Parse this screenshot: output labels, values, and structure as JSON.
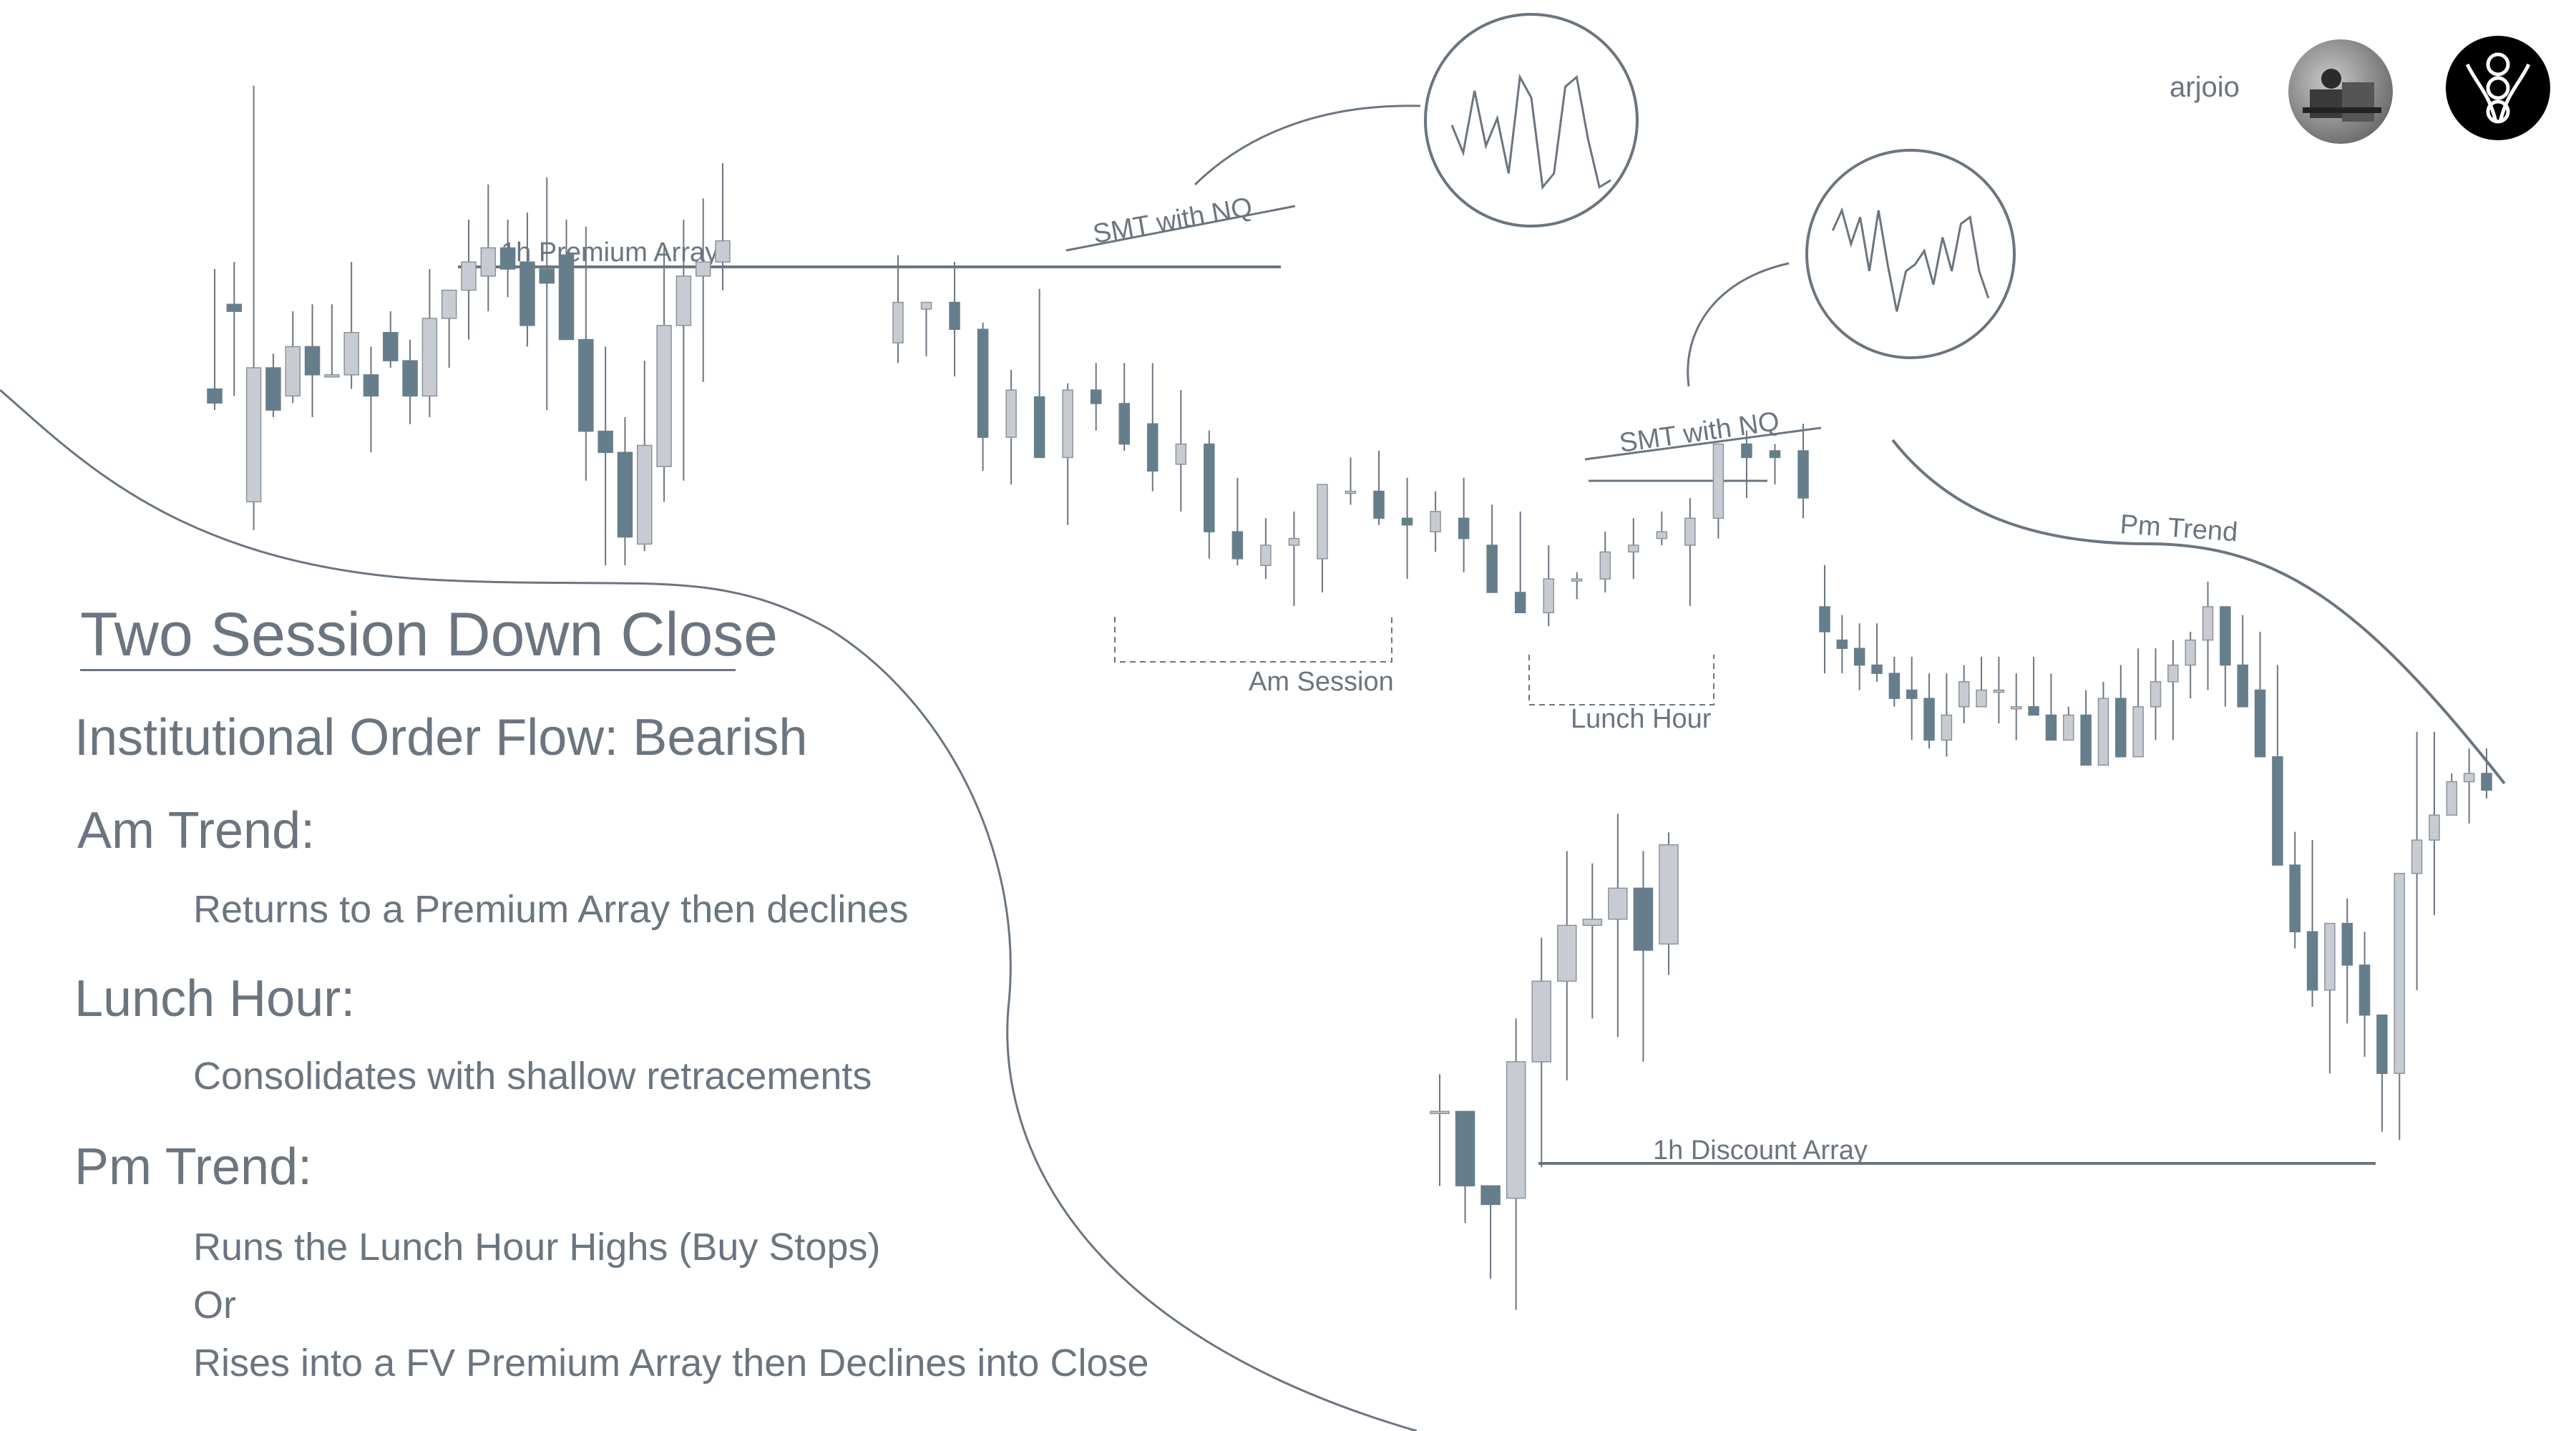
{
  "slide": {
    "title": "Two Session Down Close",
    "subtitle": "Institutional Order Flow: Bearish",
    "sections": [
      {
        "heading": "Am Trend:",
        "lines": [
          "Returns to a Premium Array then declines"
        ]
      },
      {
        "heading": "Lunch Hour:",
        "lines": [
          "Consolidates with shallow retracements"
        ]
      },
      {
        "heading": "Pm Trend:",
        "lines": [
          "Runs the Lunch Hour Highs (Buy Stops)",
          "Or",
          "Rises into a FV Premium Array then Declines into Close"
        ]
      }
    ],
    "author": "arjoio"
  },
  "chart_data": {
    "type": "candlestick",
    "colors": {
      "bullish": "#c8ccd2",
      "bearish": "#667e8c",
      "line": "#6b7580",
      "text": "#6b7580"
    },
    "annotations": [
      "1h Premium Array",
      "SMT with NQ",
      "Am Session",
      "Lunch Hour",
      "SMT with NQ",
      "Pm Trend",
      "1h Discount Array"
    ],
    "main_series": [
      [
        100,
        117,
        97,
        98
      ],
      [
        112,
        118,
        99,
        111
      ],
      [
        84,
        143,
        80,
        103
      ],
      [
        103,
        105,
        96,
        97
      ],
      [
        99,
        111,
        98,
        106
      ],
      [
        106,
        112,
        96,
        102
      ],
      [
        102,
        112,
        102,
        102
      ],
      [
        102,
        118,
        100,
        108
      ],
      [
        102,
        106,
        91,
        99
      ],
      [
        108,
        111,
        103,
        104
      ],
      [
        104,
        107,
        95,
        99
      ],
      [
        99,
        117,
        96,
        110
      ],
      [
        110,
        114,
        103,
        114
      ],
      [
        114,
        124,
        107,
        118
      ],
      [
        116,
        129,
        111,
        120
      ],
      [
        120,
        124,
        113,
        117
      ],
      [
        118,
        125,
        106,
        109
      ],
      [
        117,
        130,
        97,
        115
      ],
      [
        119,
        124,
        109,
        107
      ],
      [
        107,
        123,
        87,
        94
      ],
      [
        94,
        106,
        75,
        91
      ],
      [
        91,
        96,
        75,
        79
      ],
      [
        78,
        104,
        77,
        92
      ],
      [
        89,
        120,
        84,
        109
      ],
      [
        109,
        124,
        87,
        116
      ],
      [
        116,
        127,
        101,
        118
      ],
      [
        118,
        132,
        114,
        121
      ],
      [
        121,
        134,
        118,
        127
      ],
      [
        126,
        127,
        119,
        127
      ],
      [
        127,
        133,
        116,
        123
      ],
      [
        123,
        124,
        102,
        107
      ],
      [
        107,
        117,
        100,
        114
      ],
      [
        113,
        129,
        109,
        104
      ],
      [
        104,
        115,
        94,
        114
      ],
      [
        114,
        118,
        108,
        112
      ],
      [
        112,
        118,
        105,
        106
      ],
      [
        109,
        118,
        99,
        102
      ],
      [
        103,
        114,
        96,
        106
      ],
      [
        106,
        108,
        89,
        93
      ],
      [
        93,
        101,
        88,
        89
      ],
      [
        88,
        95,
        86,
        91
      ],
      [
        91,
        96,
        82,
        92
      ],
      [
        89,
        100,
        84,
        100
      ],
      [
        99,
        104,
        97,
        99
      ],
      [
        99,
        105,
        94,
        95
      ],
      [
        95,
        101,
        86,
        94
      ],
      [
        93,
        99,
        90,
        96
      ],
      [
        95,
        101,
        87,
        92
      ],
      [
        91,
        97,
        87,
        84
      ],
      [
        84,
        96,
        83,
        81
      ],
      [
        81,
        91,
        79,
        86
      ],
      [
        86,
        87,
        83,
        86
      ],
      [
        86,
        93,
        84,
        90
      ],
      [
        90,
        95,
        86,
        91
      ],
      [
        92,
        96,
        91,
        93
      ],
      [
        91,
        98,
        82,
        95
      ],
      [
        95,
        104,
        92,
        106
      ],
      [
        106,
        108,
        98,
        104
      ],
      [
        105,
        106,
        100,
        104
      ],
      [
        105,
        109,
        95,
        98
      ],
      [
        98,
        103,
        90,
        95
      ],
      [
        94,
        97,
        90,
        93
      ],
      [
        93,
        96,
        88,
        91
      ],
      [
        91,
        96,
        89,
        90
      ],
      [
        90,
        92,
        86,
        87
      ],
      [
        88,
        92,
        82,
        87
      ],
      [
        87,
        90,
        81,
        82
      ],
      [
        82,
        90,
        80,
        85
      ],
      [
        86,
        91,
        84,
        89
      ],
      [
        86,
        92,
        86,
        88
      ],
      [
        88,
        92,
        84,
        88
      ],
      [
        86,
        90,
        82,
        86
      ],
      [
        86,
        92,
        85,
        85
      ],
      [
        85,
        90,
        84,
        82
      ],
      [
        82,
        86,
        82,
        85
      ],
      [
        85,
        88,
        80,
        79
      ],
      [
        79,
        89,
        80,
        87
      ],
      [
        87,
        91,
        80,
        80
      ],
      [
        80,
        93,
        82,
        86
      ],
      [
        86,
        93,
        82,
        89
      ],
      [
        89,
        94,
        82,
        91
      ],
      [
        91,
        95,
        87,
        94
      ],
      [
        94,
        101,
        88,
        98
      ],
      [
        98,
        98,
        86,
        91
      ],
      [
        91,
        97,
        86,
        86
      ],
      [
        88,
        95,
        83,
        80
      ],
      [
        80,
        91,
        72,
        67
      ],
      [
        67,
        71,
        57,
        59
      ],
      [
        59,
        70,
        50,
        52
      ],
      [
        52,
        59,
        42,
        60
      ],
      [
        60,
        63,
        48,
        55
      ],
      [
        55,
        59,
        44,
        49
      ],
      [
        49,
        49,
        35,
        42
      ],
      [
        42,
        61,
        34,
        66
      ],
      [
        66,
        83,
        52,
        70
      ],
      [
        70,
        83,
        61,
        73
      ],
      [
        73,
        78,
        73,
        77
      ],
      [
        77,
        81,
        72,
        78
      ],
      [
        78,
        81,
        75,
        76
      ]
    ],
    "discount_inset": [
      [
        100,
        106,
        88,
        100
      ],
      [
        100,
        100,
        82,
        88
      ],
      [
        88,
        88,
        73,
        85
      ],
      [
        86,
        115,
        68,
        108
      ],
      [
        108,
        128,
        91,
        121
      ],
      [
        121,
        142,
        105,
        130
      ],
      [
        130,
        140,
        115,
        131
      ],
      [
        131,
        148,
        112,
        136
      ],
      [
        136,
        142,
        108,
        126
      ],
      [
        127,
        145,
        122,
        143
      ]
    ],
    "smt_insets": [
      [
        50,
        30,
        75,
        35,
        55,
        15,
        85,
        70,
        5,
        15,
        78,
        85,
        40,
        5,
        10
      ],
      [
        70,
        85,
        60,
        80,
        40,
        85,
        45,
        10,
        40,
        45,
        55,
        30,
        65,
        40,
        75,
        80,
        40,
        20
      ]
    ]
  }
}
